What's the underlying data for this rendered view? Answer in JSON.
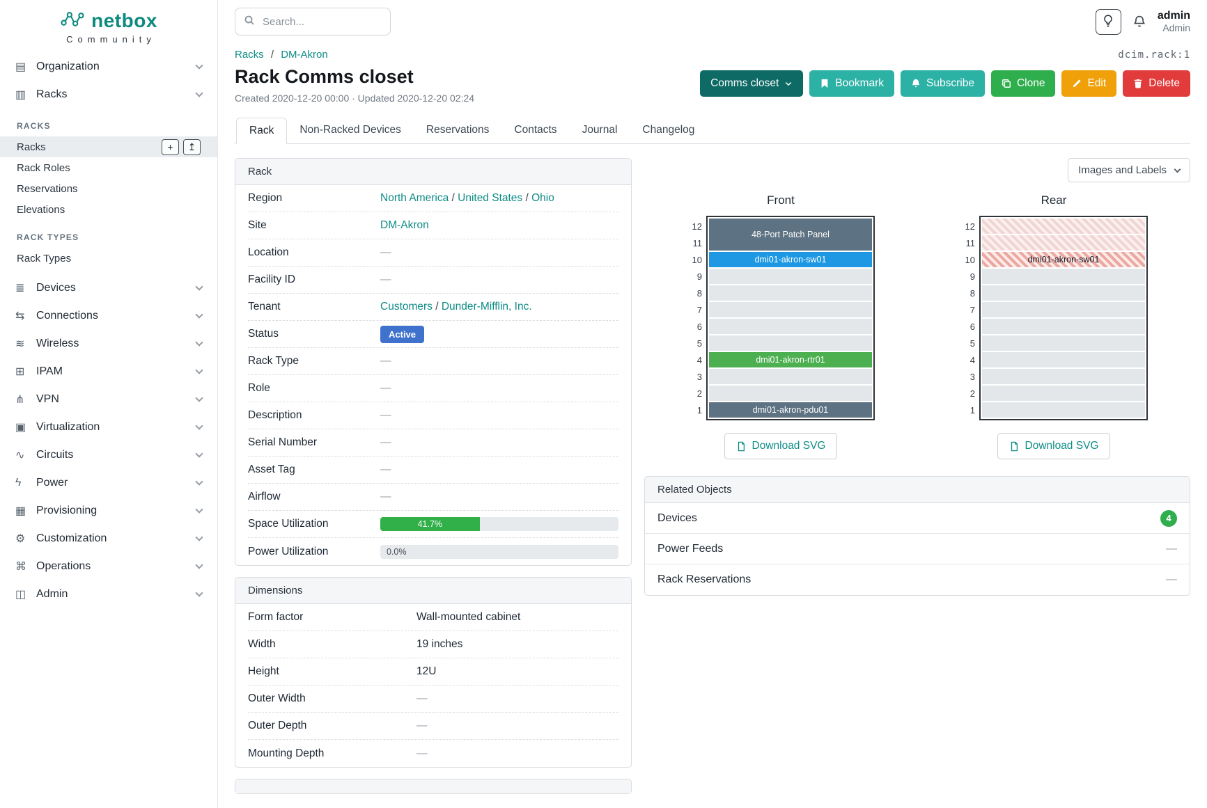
{
  "brand": {
    "logo": "netbox",
    "subtitle": "Community"
  },
  "topbar": {
    "search_placeholder": "Search...",
    "user_name": "admin",
    "user_role": "Admin"
  },
  "colors": {
    "brand_teal": "#0e8a7f",
    "link_teal": "#0e8c85",
    "status_active": "#3f72cc",
    "progress_green": "#31b049",
    "count_badge_green": "#2fae4d",
    "hatch_red": "#eba8a1",
    "hatch_light": "#f0d5d2"
  },
  "sidebar": {
    "menu": [
      {
        "type": "item",
        "label": "Organization",
        "icon": "organization-icon",
        "glyph": "▤"
      },
      {
        "type": "item",
        "label": "Racks",
        "icon": "racks-icon",
        "glyph": "▥"
      },
      {
        "type": "group",
        "label": "RACKS"
      },
      {
        "type": "subitem",
        "label": "Racks",
        "active": true,
        "actions": [
          "add",
          "import"
        ]
      },
      {
        "type": "subitem",
        "label": "Rack Roles"
      },
      {
        "type": "subitem",
        "label": "Reservations"
      },
      {
        "type": "subitem",
        "label": "Elevations"
      },
      {
        "type": "group",
        "label": "RACK TYPES"
      },
      {
        "type": "subitem",
        "label": "Rack Types"
      },
      {
        "type": "item",
        "label": "Devices",
        "icon": "devices-icon",
        "glyph": "≣"
      },
      {
        "type": "item",
        "label": "Connections",
        "icon": "connections-icon",
        "glyph": "⇆"
      },
      {
        "type": "item",
        "label": "Wireless",
        "icon": "wireless-icon",
        "glyph": "≋"
      },
      {
        "type": "item",
        "label": "IPAM",
        "icon": "ipam-icon",
        "glyph": "⊞"
      },
      {
        "type": "item",
        "label": "VPN",
        "icon": "vpn-icon",
        "glyph": "⋔"
      },
      {
        "type": "item",
        "label": "Virtualization",
        "icon": "virtualization-icon",
        "glyph": "▣"
      },
      {
        "type": "item",
        "label": "Circuits",
        "icon": "circuits-icon",
        "glyph": "∿"
      },
      {
        "type": "item",
        "label": "Power",
        "icon": "power-icon",
        "glyph": "ϟ"
      },
      {
        "type": "item",
        "label": "Provisioning",
        "icon": "provisioning-icon",
        "glyph": "▦"
      },
      {
        "type": "item",
        "label": "Customization",
        "icon": "customization-icon",
        "glyph": "⚙"
      },
      {
        "type": "item",
        "label": "Operations",
        "icon": "operations-icon",
        "glyph": "⌘"
      },
      {
        "type": "item",
        "label": "Admin",
        "icon": "admin-icon",
        "glyph": "◫"
      }
    ]
  },
  "breadcrumb": {
    "items": [
      "Racks",
      "DM-Akron"
    ],
    "object_id": "dcim.rack:1"
  },
  "page": {
    "title": "Rack Comms closet",
    "meta": "Created 2020-12-20 00:00 · Updated 2020-12-20 02:24"
  },
  "actions": [
    {
      "label": "Comms closet",
      "color": "#0d6a64",
      "icon": "chevron-down",
      "icon_position": "after"
    },
    {
      "label": "Bookmark",
      "color": "#2cb1a5",
      "icon": "bookmark"
    },
    {
      "label": "Subscribe",
      "color": "#2cb1a5",
      "icon": "bell"
    },
    {
      "label": "Clone",
      "color": "#2fae4d",
      "icon": "copy"
    },
    {
      "label": "Edit",
      "color": "#f0a009",
      "icon": "pencil"
    },
    {
      "label": "Delete",
      "color": "#e23b3c",
      "icon": "trash"
    }
  ],
  "tabs": [
    {
      "label": "Rack",
      "active": true
    },
    {
      "label": "Non-Racked Devices"
    },
    {
      "label": "Reservations"
    },
    {
      "label": "Contacts"
    },
    {
      "label": "Journal"
    },
    {
      "label": "Changelog"
    }
  ],
  "rack_panel": {
    "title": "Rack",
    "rows": [
      {
        "label": "Region",
        "type": "links",
        "links": [
          "North America",
          "United States",
          "Ohio"
        ]
      },
      {
        "label": "Site",
        "type": "links",
        "links": [
          "DM-Akron"
        ]
      },
      {
        "label": "Location",
        "type": "empty",
        "value": "—"
      },
      {
        "label": "Facility ID",
        "type": "empty",
        "value": "—"
      },
      {
        "label": "Tenant",
        "type": "links",
        "links": [
          "Customers",
          "Dunder-Mifflin, Inc."
        ]
      },
      {
        "label": "Status",
        "type": "badge",
        "value": "Active",
        "color": "#3f72cc"
      },
      {
        "label": "Rack Type",
        "type": "empty",
        "value": "—"
      },
      {
        "label": "Role",
        "type": "empty",
        "value": "—"
      },
      {
        "label": "Description",
        "type": "empty",
        "value": "—"
      },
      {
        "label": "Serial Number",
        "type": "empty",
        "value": "—"
      },
      {
        "label": "Asset Tag",
        "type": "empty",
        "value": "—"
      },
      {
        "label": "Airflow",
        "type": "empty",
        "value": "—"
      },
      {
        "label": "Space Utilization",
        "type": "progress",
        "value": 41.7,
        "text": "41.7%",
        "color": "#31b049"
      },
      {
        "label": "Power Utilization",
        "type": "progress",
        "value": 0,
        "text": "0.0%",
        "color": "#31b049"
      }
    ]
  },
  "dimensions_panel": {
    "title": "Dimensions",
    "rows": [
      {
        "label": "Form factor",
        "value": "Wall-mounted cabinet"
      },
      {
        "label": "Width",
        "value": "19 inches"
      },
      {
        "label": "Height",
        "value": "12U"
      },
      {
        "label": "Outer Width",
        "value": "—",
        "empty": true
      },
      {
        "label": "Outer Depth",
        "value": "—",
        "empty": true
      },
      {
        "label": "Mounting Depth",
        "value": "—",
        "empty": true
      }
    ]
  },
  "elevations": {
    "view_selector": "Images and Labels",
    "download_label": "Download SVG",
    "units_scale": [
      12,
      11,
      10,
      9,
      8,
      7,
      6,
      5,
      4,
      3,
      2,
      1
    ],
    "front": {
      "title": "Front",
      "units": [
        {
          "u": [
            12,
            11
          ],
          "label": "48-Port Patch Panel",
          "color": "#5d7282",
          "text": "#ffffff"
        },
        {
          "u": [
            10
          ],
          "label": "dmi01-akron-sw01",
          "color": "#1e98e3",
          "text": "#ffffff"
        },
        {
          "u": [
            9
          ]
        },
        {
          "u": [
            8
          ]
        },
        {
          "u": [
            7
          ]
        },
        {
          "u": [
            6
          ]
        },
        {
          "u": [
            5
          ]
        },
        {
          "u": [
            4
          ],
          "label": "dmi01-akron-rtr01",
          "color": "#4caf50",
          "text": "#ffffff"
        },
        {
          "u": [
            3
          ]
        },
        {
          "u": [
            2
          ]
        },
        {
          "u": [
            1
          ],
          "label": "dmi01-akron-pdu01",
          "color": "#5d7282",
          "text": "#ffffff"
        }
      ]
    },
    "rear": {
      "title": "Rear",
      "units": [
        {
          "u": [
            12
          ],
          "hatch": "light"
        },
        {
          "u": [
            11
          ],
          "hatch": "light"
        },
        {
          "u": [
            10
          ],
          "label": "dmi01-akron-sw01",
          "hatch": "red",
          "text": "#18202a"
        },
        {
          "u": [
            9
          ]
        },
        {
          "u": [
            8
          ]
        },
        {
          "u": [
            7
          ]
        },
        {
          "u": [
            6
          ]
        },
        {
          "u": [
            5
          ]
        },
        {
          "u": [
            4
          ]
        },
        {
          "u": [
            3
          ]
        },
        {
          "u": [
            2
          ]
        },
        {
          "u": [
            1
          ]
        }
      ]
    }
  },
  "related_objects": {
    "title": "Related Objects",
    "rows": [
      {
        "label": "Devices",
        "badge": "4",
        "badge_color": "#2fae4d"
      },
      {
        "label": "Power Feeds",
        "value": "—"
      },
      {
        "label": "Rack Reservations",
        "value": "—"
      }
    ]
  }
}
